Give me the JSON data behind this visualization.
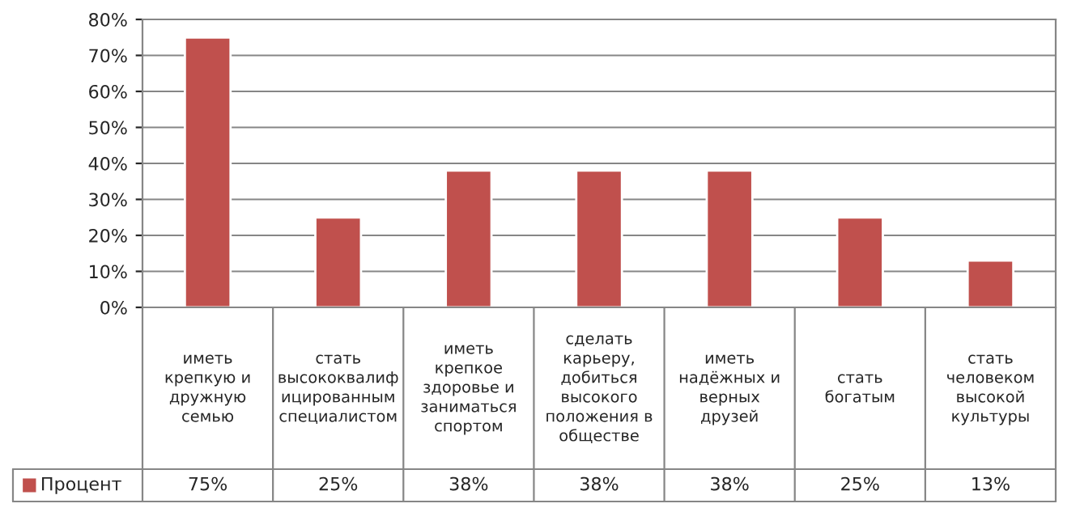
{
  "chart_data": {
    "type": "bar",
    "categories": [
      "иметь крепкую и дружную семью",
      "стать высококвалифицированным специалистом",
      "иметь крепкое здоровье и заниматься спортом",
      "сделать карьеру, добиться высокого положения в обществе",
      "иметь надёжных и верных друзей",
      "стать богатым",
      "стать человеком высокой культуры"
    ],
    "series": [
      {
        "name": "Процент",
        "color": "#c0504d",
        "values": [
          75,
          25,
          38,
          38,
          38,
          25,
          13
        ],
        "value_labels": [
          "75%",
          "25%",
          "38%",
          "38%",
          "38%",
          "25%",
          "13%"
        ]
      }
    ],
    "ylim": [
      0,
      80
    ],
    "yticks": [
      {
        "value": 0,
        "label": "0%"
      },
      {
        "value": 10,
        "label": "10%"
      },
      {
        "value": 20,
        "label": "20%"
      },
      {
        "value": 30,
        "label": "30%"
      },
      {
        "value": 40,
        "label": "40%"
      },
      {
        "value": 50,
        "label": "50%"
      },
      {
        "value": 60,
        "label": "60%"
      },
      {
        "value": 70,
        "label": "70%"
      },
      {
        "value": 80,
        "label": "80%"
      }
    ],
    "grid": "y",
    "legend": "bottom"
  }
}
